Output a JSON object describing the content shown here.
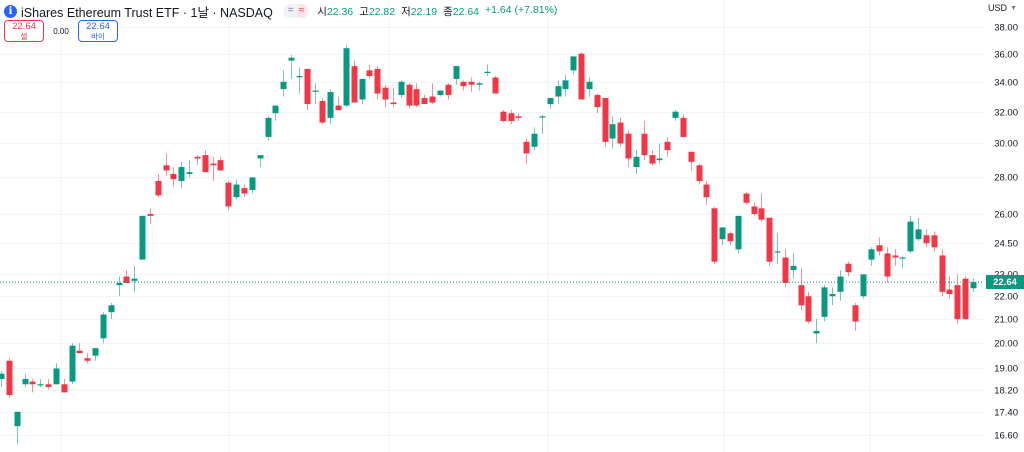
{
  "header": {
    "title": "iShares Ethereum Trust ETF · 1날 · NASDAQ",
    "info_icon": "info-icon",
    "indicator_equal": "=",
    "indicator_approx": "≈",
    "ohlc": {
      "open_label": "시",
      "open": "22.36",
      "high_label": "고",
      "high": "22.82",
      "low_label": "저",
      "low": "22.19",
      "close_label": "종",
      "close": "22.64",
      "change": "+1.64 (+7.81%)"
    }
  },
  "trade": {
    "sell_price": "22.64",
    "sell_label": "셀",
    "spread": "0.00",
    "buy_price": "22.64",
    "buy_label": "바이"
  },
  "currency": {
    "label": "USD",
    "icon": "chevron-down-icon"
  },
  "colors": {
    "up": "#089981",
    "down": "#f23645",
    "grid": "#f0f3fa",
    "last_price": "#089981"
  },
  "chart_data": {
    "type": "candlestick",
    "title": "iShares Ethereum Trust ETF · 1날 · NASDAQ",
    "scale": "log",
    "ylim": [
      16.1,
      39.0
    ],
    "y_ticks": [
      38.0,
      36.0,
      34.0,
      32.0,
      30.0,
      28.0,
      26.0,
      24.5,
      23.0,
      22.0,
      21.0,
      20.0,
      19.0,
      18.2,
      17.4,
      16.6
    ],
    "y_tick_labels": [
      "38.00",
      "36.00",
      "34.00",
      "32.00",
      "30.00",
      "28.00",
      "26.00",
      "24.50",
      "23.00",
      "22.00",
      "21.00",
      "20.00",
      "19.00",
      "18.20",
      "17.40",
      "16.60"
    ],
    "last_price": 22.64,
    "last_price_label": "22.64",
    "grid": true,
    "candles": [
      {
        "o": 18.6,
        "h": 18.9,
        "l": 18.3,
        "c": 18.8
      },
      {
        "o": 19.3,
        "h": 19.4,
        "l": 17.9,
        "c": 18.0
      },
      {
        "o": 16.9,
        "h": 17.4,
        "l": 16.3,
        "c": 17.4
      },
      {
        "o": 18.4,
        "h": 18.8,
        "l": 18.3,
        "c": 18.6
      },
      {
        "o": 18.5,
        "h": 18.6,
        "l": 18.1,
        "c": 18.4
      },
      {
        "o": 18.4,
        "h": 18.6,
        "l": 18.3,
        "c": 18.4
      },
      {
        "o": 18.4,
        "h": 18.6,
        "l": 18.2,
        "c": 18.3
      },
      {
        "o": 18.4,
        "h": 19.2,
        "l": 18.4,
        "c": 19.0
      },
      {
        "o": 18.4,
        "h": 18.6,
        "l": 18.1,
        "c": 18.1
      },
      {
        "o": 18.5,
        "h": 20.0,
        "l": 18.4,
        "c": 19.9
      },
      {
        "o": 19.7,
        "h": 20.0,
        "l": 19.7,
        "c": 19.6
      },
      {
        "o": 19.4,
        "h": 19.6,
        "l": 19.2,
        "c": 19.3
      },
      {
        "o": 19.5,
        "h": 19.8,
        "l": 19.3,
        "c": 19.8
      },
      {
        "o": 20.2,
        "h": 21.3,
        "l": 20.0,
        "c": 21.2
      },
      {
        "o": 21.3,
        "h": 21.7,
        "l": 21.0,
        "c": 21.6
      },
      {
        "o": 22.5,
        "h": 22.9,
        "l": 22.0,
        "c": 22.6
      },
      {
        "o": 22.9,
        "h": 23.2,
        "l": 22.6,
        "c": 22.6
      },
      {
        "o": 22.7,
        "h": 23.4,
        "l": 22.2,
        "c": 22.8
      },
      {
        "o": 23.7,
        "h": 25.9,
        "l": 23.7,
        "c": 25.9
      },
      {
        "o": 26.0,
        "h": 26.3,
        "l": 25.5,
        "c": 25.9
      },
      {
        "o": 27.8,
        "h": 28.2,
        "l": 26.9,
        "c": 27.0
      },
      {
        "o": 28.7,
        "h": 29.4,
        "l": 28.1,
        "c": 28.4
      },
      {
        "o": 28.2,
        "h": 28.6,
        "l": 27.5,
        "c": 27.9
      },
      {
        "o": 27.8,
        "h": 28.9,
        "l": 27.4,
        "c": 28.6
      },
      {
        "o": 28.2,
        "h": 29.0,
        "l": 28.0,
        "c": 28.3
      },
      {
        "o": 29.2,
        "h": 29.3,
        "l": 28.7,
        "c": 29.1
      },
      {
        "o": 29.3,
        "h": 29.6,
        "l": 28.4,
        "c": 28.3
      },
      {
        "o": 28.8,
        "h": 29.2,
        "l": 27.8,
        "c": 28.7
      },
      {
        "o": 29.0,
        "h": 29.2,
        "l": 28.4,
        "c": 28.4
      },
      {
        "o": 27.7,
        "h": 27.8,
        "l": 26.2,
        "c": 26.4
      },
      {
        "o": 26.9,
        "h": 27.9,
        "l": 26.8,
        "c": 27.6
      },
      {
        "o": 27.4,
        "h": 27.6,
        "l": 26.9,
        "c": 27.1
      },
      {
        "o": 27.3,
        "h": 28.0,
        "l": 27.1,
        "c": 28.0
      },
      {
        "o": 29.1,
        "h": 29.3,
        "l": 28.6,
        "c": 29.3
      },
      {
        "o": 30.4,
        "h": 31.7,
        "l": 30.2,
        "c": 31.6
      },
      {
        "o": 31.9,
        "h": 32.3,
        "l": 31.4,
        "c": 32.4
      },
      {
        "o": 33.5,
        "h": 34.8,
        "l": 33.0,
        "c": 34.0
      },
      {
        "o": 35.5,
        "h": 35.9,
        "l": 34.2,
        "c": 35.7
      },
      {
        "o": 34.4,
        "h": 35.0,
        "l": 33.2,
        "c": 34.4
      },
      {
        "o": 34.9,
        "h": 34.9,
        "l": 32.1,
        "c": 32.5
      },
      {
        "o": 33.4,
        "h": 33.9,
        "l": 32.5,
        "c": 33.4
      },
      {
        "o": 32.7,
        "h": 32.9,
        "l": 31.2,
        "c": 31.3
      },
      {
        "o": 31.6,
        "h": 33.5,
        "l": 31.2,
        "c": 33.3
      },
      {
        "o": 32.4,
        "h": 33.0,
        "l": 32.2,
        "c": 32.1
      },
      {
        "o": 32.4,
        "h": 36.6,
        "l": 32.3,
        "c": 36.4
      },
      {
        "o": 35.1,
        "h": 35.5,
        "l": 32.6,
        "c": 32.6
      },
      {
        "o": 32.8,
        "h": 34.2,
        "l": 32.5,
        "c": 34.2
      },
      {
        "o": 34.8,
        "h": 35.2,
        "l": 34.2,
        "c": 34.4
      },
      {
        "o": 34.9,
        "h": 35.1,
        "l": 32.8,
        "c": 33.2
      },
      {
        "o": 33.6,
        "h": 33.8,
        "l": 32.3,
        "c": 32.8
      },
      {
        "o": 32.6,
        "h": 33.6,
        "l": 32.3,
        "c": 32.5
      },
      {
        "o": 33.1,
        "h": 34.1,
        "l": 32.9,
        "c": 34.0
      },
      {
        "o": 33.8,
        "h": 33.9,
        "l": 32.2,
        "c": 32.4
      },
      {
        "o": 33.5,
        "h": 33.9,
        "l": 32.3,
        "c": 32.4
      },
      {
        "o": 32.9,
        "h": 33.1,
        "l": 32.6,
        "c": 32.5
      },
      {
        "o": 33.0,
        "h": 33.9,
        "l": 32.5,
        "c": 32.6
      },
      {
        "o": 33.1,
        "h": 33.3,
        "l": 33.0,
        "c": 33.4
      },
      {
        "o": 33.8,
        "h": 33.9,
        "l": 32.8,
        "c": 33.1
      },
      {
        "o": 34.2,
        "h": 34.9,
        "l": 33.8,
        "c": 35.1
      },
      {
        "o": 34.0,
        "h": 34.1,
        "l": 33.4,
        "c": 33.7
      },
      {
        "o": 34.0,
        "h": 34.3,
        "l": 33.3,
        "c": 33.8
      },
      {
        "o": 33.8,
        "h": 34.0,
        "l": 33.4,
        "c": 33.9
      },
      {
        "o": 34.7,
        "h": 35.2,
        "l": 34.4,
        "c": 34.7
      },
      {
        "o": 34.3,
        "h": 34.4,
        "l": 33.2,
        "c": 33.2
      },
      {
        "o": 32.0,
        "h": 32.1,
        "l": 31.3,
        "c": 31.4
      },
      {
        "o": 31.9,
        "h": 32.1,
        "l": 31.2,
        "c": 31.4
      },
      {
        "o": 31.7,
        "h": 31.9,
        "l": 31.4,
        "c": 31.6
      },
      {
        "o": 30.1,
        "h": 30.3,
        "l": 28.8,
        "c": 29.4
      },
      {
        "o": 29.8,
        "h": 31.0,
        "l": 29.6,
        "c": 30.6
      },
      {
        "o": 31.7,
        "h": 31.8,
        "l": 30.6,
        "c": 31.7
      },
      {
        "o": 32.5,
        "h": 32.6,
        "l": 32.2,
        "c": 32.9
      },
      {
        "o": 33.0,
        "h": 34.1,
        "l": 32.5,
        "c": 33.7
      },
      {
        "o": 33.5,
        "h": 34.5,
        "l": 33.0,
        "c": 34.1
      },
      {
        "o": 34.8,
        "h": 35.8,
        "l": 34.5,
        "c": 35.8
      },
      {
        "o": 36.0,
        "h": 36.1,
        "l": 32.9,
        "c": 32.8
      },
      {
        "o": 33.5,
        "h": 34.3,
        "l": 33.0,
        "c": 34.0
      },
      {
        "o": 33.1,
        "h": 33.2,
        "l": 31.9,
        "c": 32.3
      },
      {
        "o": 32.9,
        "h": 32.9,
        "l": 29.8,
        "c": 30.1
      },
      {
        "o": 30.3,
        "h": 31.7,
        "l": 29.7,
        "c": 31.2
      },
      {
        "o": 31.3,
        "h": 31.6,
        "l": 29.8,
        "c": 30.0
      },
      {
        "o": 30.6,
        "h": 30.8,
        "l": 28.6,
        "c": 29.1
      },
      {
        "o": 28.6,
        "h": 29.6,
        "l": 28.2,
        "c": 29.2
      },
      {
        "o": 30.6,
        "h": 31.4,
        "l": 29.0,
        "c": 29.3
      },
      {
        "o": 29.3,
        "h": 29.6,
        "l": 28.7,
        "c": 28.8
      },
      {
        "o": 29.0,
        "h": 30.0,
        "l": 28.8,
        "c": 29.1
      },
      {
        "o": 30.1,
        "h": 30.4,
        "l": 29.2,
        "c": 29.6
      },
      {
        "o": 31.6,
        "h": 32.1,
        "l": 31.4,
        "c": 32.0
      },
      {
        "o": 31.6,
        "h": 31.8,
        "l": 30.4,
        "c": 30.4
      },
      {
        "o": 29.5,
        "h": 29.5,
        "l": 28.4,
        "c": 28.9
      },
      {
        "o": 28.7,
        "h": 28.8,
        "l": 27.6,
        "c": 27.8
      },
      {
        "o": 27.6,
        "h": 27.8,
        "l": 26.5,
        "c": 26.9
      },
      {
        "o": 26.3,
        "h": 26.4,
        "l": 23.5,
        "c": 23.6
      },
      {
        "o": 24.7,
        "h": 25.3,
        "l": 24.4,
        "c": 25.3
      },
      {
        "o": 25.0,
        "h": 25.1,
        "l": 24.4,
        "c": 24.6
      },
      {
        "o": 24.2,
        "h": 25.9,
        "l": 24.0,
        "c": 25.9
      },
      {
        "o": 27.1,
        "h": 27.2,
        "l": 26.5,
        "c": 26.6
      },
      {
        "o": 26.4,
        "h": 26.6,
        "l": 25.9,
        "c": 26.0
      },
      {
        "o": 26.3,
        "h": 27.1,
        "l": 25.6,
        "c": 25.7
      },
      {
        "o": 25.8,
        "h": 25.8,
        "l": 23.4,
        "c": 23.6
      },
      {
        "o": 24.1,
        "h": 25.0,
        "l": 23.5,
        "c": 24.1
      },
      {
        "o": 23.8,
        "h": 24.2,
        "l": 22.4,
        "c": 22.6
      },
      {
        "o": 23.2,
        "h": 24.0,
        "l": 22.8,
        "c": 23.4
      },
      {
        "o": 22.5,
        "h": 23.3,
        "l": 21.4,
        "c": 21.6
      },
      {
        "o": 22.0,
        "h": 22.2,
        "l": 20.8,
        "c": 20.9
      },
      {
        "o": 20.4,
        "h": 21.0,
        "l": 20.0,
        "c": 20.5
      },
      {
        "o": 21.1,
        "h": 22.5,
        "l": 20.9,
        "c": 22.4
      },
      {
        "o": 22.0,
        "h": 22.4,
        "l": 21.6,
        "c": 22.1
      },
      {
        "o": 22.2,
        "h": 23.2,
        "l": 21.8,
        "c": 22.9
      },
      {
        "o": 23.5,
        "h": 23.6,
        "l": 22.9,
        "c": 23.1
      },
      {
        "o": 21.6,
        "h": 21.7,
        "l": 20.5,
        "c": 20.9
      },
      {
        "o": 22.0,
        "h": 22.8,
        "l": 21.9,
        "c": 23.0
      },
      {
        "o": 23.7,
        "h": 24.3,
        "l": 23.4,
        "c": 24.2
      },
      {
        "o": 24.4,
        "h": 24.8,
        "l": 23.9,
        "c": 24.1
      },
      {
        "o": 24.0,
        "h": 24.3,
        "l": 22.6,
        "c": 22.9
      },
      {
        "o": 23.9,
        "h": 24.2,
        "l": 23.4,
        "c": 23.8
      },
      {
        "o": 23.8,
        "h": 23.9,
        "l": 23.3,
        "c": 23.8
      },
      {
        "o": 24.1,
        "h": 25.9,
        "l": 24.0,
        "c": 25.6
      },
      {
        "o": 24.7,
        "h": 25.8,
        "l": 24.6,
        "c": 25.2
      },
      {
        "o": 24.9,
        "h": 25.2,
        "l": 24.3,
        "c": 24.5
      },
      {
        "o": 24.9,
        "h": 25.1,
        "l": 24.1,
        "c": 24.3
      },
      {
        "o": 23.9,
        "h": 24.2,
        "l": 22.0,
        "c": 22.2
      },
      {
        "o": 22.3,
        "h": 22.9,
        "l": 21.9,
        "c": 22.1
      },
      {
        "o": 22.5,
        "h": 23.0,
        "l": 20.8,
        "c": 21.0
      },
      {
        "o": 22.8,
        "h": 22.9,
        "l": 21.0,
        "c": 21.0
      },
      {
        "o": 22.36,
        "h": 22.82,
        "l": 22.19,
        "c": 22.64
      }
    ]
  }
}
